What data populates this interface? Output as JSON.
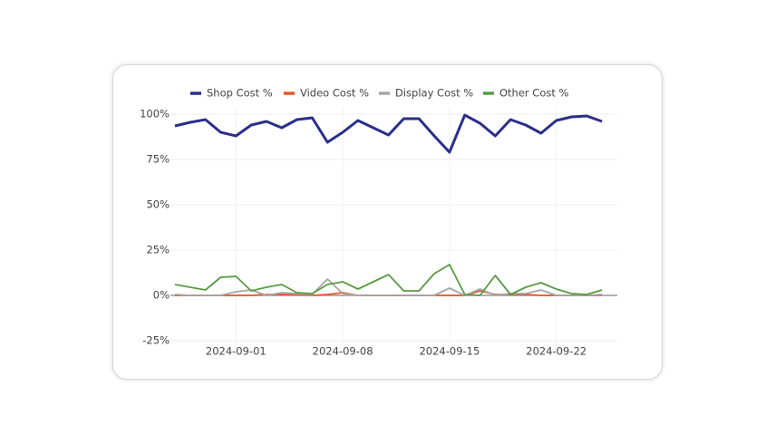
{
  "chart_data": {
    "type": "line",
    "x": [
      "2024-08-28",
      "2024-08-29",
      "2024-08-30",
      "2024-08-31",
      "2024-09-01",
      "2024-09-02",
      "2024-09-03",
      "2024-09-04",
      "2024-09-05",
      "2024-09-06",
      "2024-09-07",
      "2024-09-08",
      "2024-09-09",
      "2024-09-10",
      "2024-09-11",
      "2024-09-12",
      "2024-09-13",
      "2024-09-14",
      "2024-09-15",
      "2024-09-16",
      "2024-09-17",
      "2024-09-18",
      "2024-09-19",
      "2024-09-20",
      "2024-09-21",
      "2024-09-22",
      "2024-09-23",
      "2024-09-24",
      "2024-09-25"
    ],
    "series": [
      {
        "name": "Shop Cost %",
        "color": "#2a2f8a",
        "values": [
          93.5,
          95.5,
          97,
          90,
          88,
          94,
          96,
          92.5,
          97,
          98,
          84.5,
          90,
          96.5,
          92.5,
          88.5,
          97.5,
          97.5,
          88,
          79,
          99.5,
          95,
          88,
          97,
          94,
          89.5,
          96.5,
          98.5,
          99,
          96
        ]
      },
      {
        "name": "Video Cost %",
        "color": "#e8572a",
        "values": [
          0,
          0,
          0,
          0,
          0,
          0,
          0.5,
          0.5,
          0.5,
          0,
          0.5,
          1.5,
          0,
          0,
          0,
          0,
          0,
          0,
          0,
          0,
          2.5,
          0.5,
          0.5,
          0.5,
          0,
          0,
          0,
          0,
          0
        ]
      },
      {
        "name": "Display Cost %",
        "color": "#a6a6a6",
        "values": [
          0.5,
          0,
          0,
          0,
          2,
          3,
          0,
          1.5,
          1,
          0.5,
          9,
          1,
          0,
          0,
          0,
          0,
          0,
          0,
          4,
          0,
          3.5,
          0,
          1,
          1,
          3,
          0,
          0,
          0,
          0.5
        ]
      },
      {
        "name": "Other Cost %",
        "color": "#5a9a44",
        "values": [
          6,
          4.5,
          3,
          10,
          10.5,
          2.5,
          4.5,
          6,
          1.5,
          1,
          6,
          7.5,
          3.5,
          7.5,
          11.5,
          2.5,
          2.5,
          12,
          17,
          0.5,
          0,
          11,
          0.5,
          4.5,
          7,
          3.5,
          1,
          0.5,
          3
        ]
      }
    ],
    "xlim": [
      "2024-08-28",
      "2024-09-26"
    ],
    "xticks": [
      "2024-09-01",
      "2024-09-08",
      "2024-09-15",
      "2024-09-22"
    ],
    "ylim": [
      -33,
      104
    ],
    "yticks": [
      {
        "value": -25,
        "label": "-25%"
      },
      {
        "value": 0,
        "label": "0%"
      },
      {
        "value": 25,
        "label": "25%"
      },
      {
        "value": 50,
        "label": "50%"
      },
      {
        "value": 75,
        "label": "75%"
      },
      {
        "value": 100,
        "label": "100%"
      }
    ],
    "grid": true,
    "legend": "top"
  }
}
